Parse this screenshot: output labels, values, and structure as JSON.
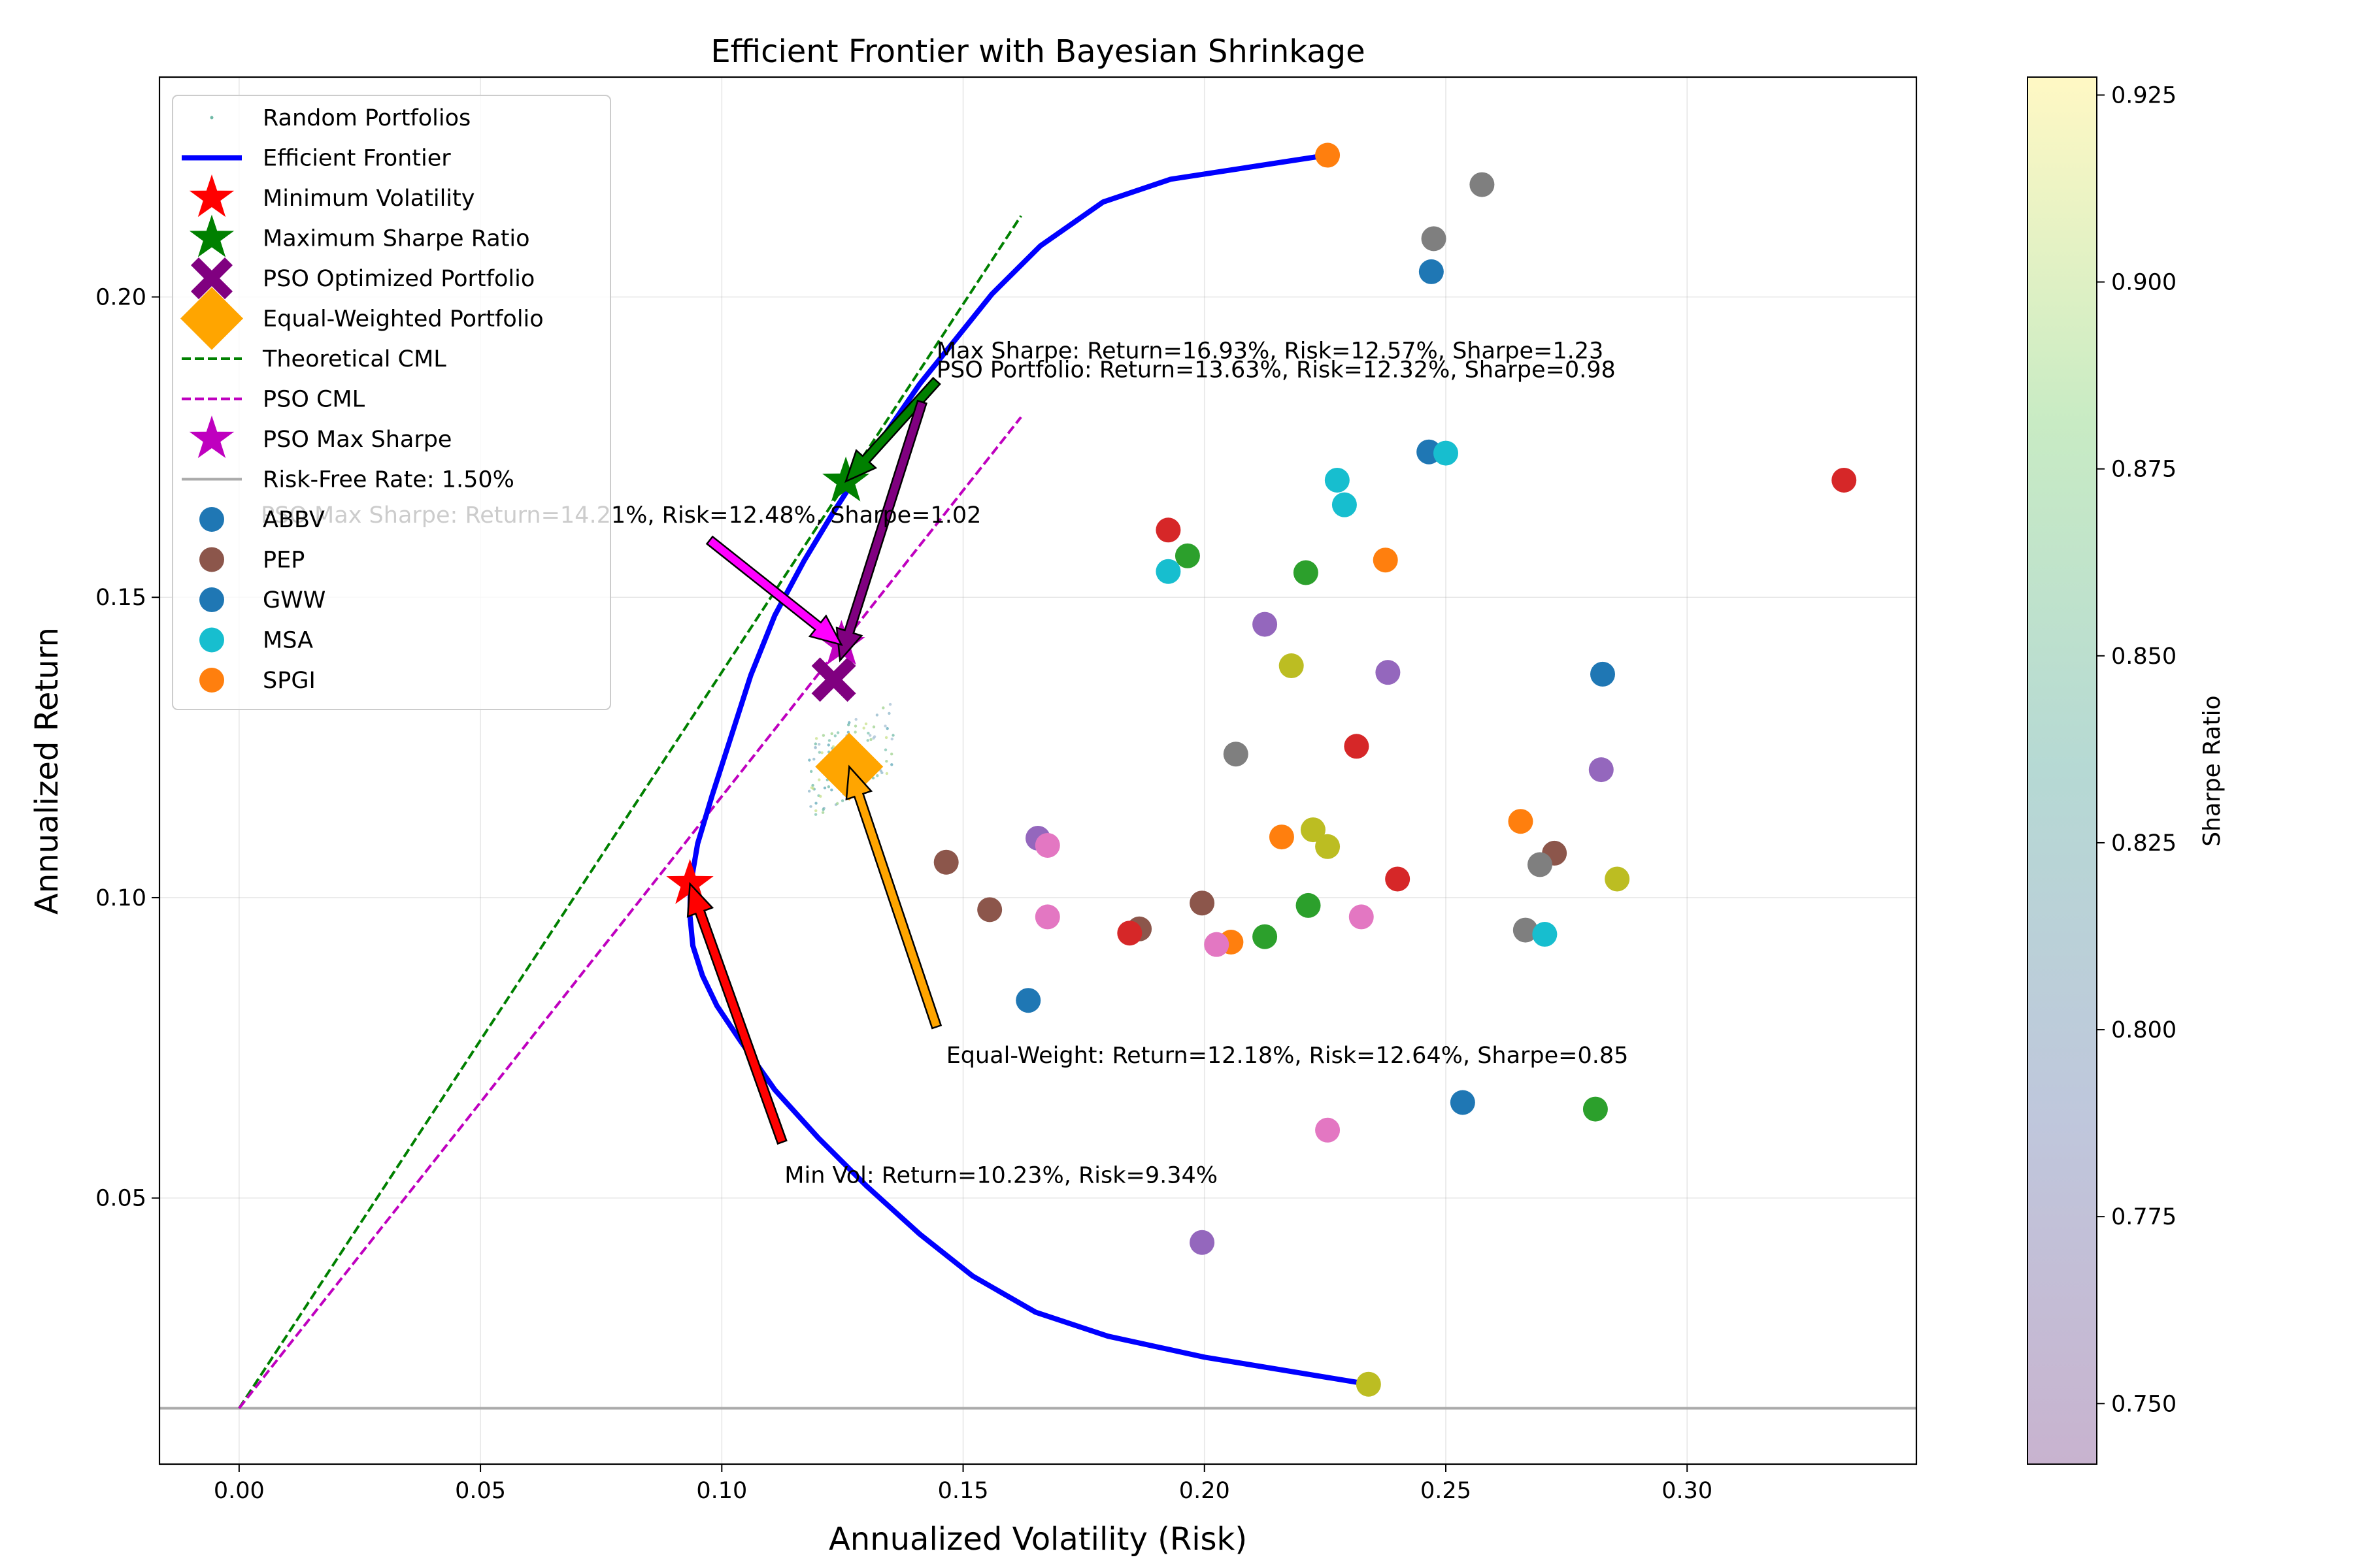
{
  "chart_data": {
    "type": "scatter",
    "title": "Efficient Frontier with Bayesian Shrinkage",
    "xlabel": "Annualized Volatility (Risk)",
    "ylabel": "Annualized Return",
    "xlim": [
      -0.0165,
      0.3475
    ],
    "ylim": [
      0.0057,
      0.2366
    ],
    "x_ticks": [
      0.0,
      0.05,
      0.1,
      0.15,
      0.2,
      0.25,
      0.3
    ],
    "x_tick_labels": [
      "0.00",
      "0.05",
      "0.10",
      "0.15",
      "0.20",
      "0.25",
      "0.30"
    ],
    "y_ticks": [
      0.05,
      0.1,
      0.15,
      0.2
    ],
    "y_tick_labels": [
      "0.05",
      "0.10",
      "0.15",
      "0.20"
    ],
    "grid": true,
    "legend_position": "upper-left",
    "legend": [
      {
        "label": "Random Portfolios",
        "marker": "dot",
        "color": "#6fb9a6"
      },
      {
        "label": "Efficient Frontier",
        "marker": "line",
        "color": "#0000ff"
      },
      {
        "label": "Minimum Volatility",
        "marker": "star",
        "color": "#ff0000"
      },
      {
        "label": "Maximum Sharpe Ratio",
        "marker": "star",
        "color": "#008000"
      },
      {
        "label": "PSO Optimized Portfolio",
        "marker": "x",
        "color": "#800080"
      },
      {
        "label": "Equal-Weighted Portfolio",
        "marker": "diamond",
        "color": "#ffa500"
      },
      {
        "label": "Theoretical CML",
        "marker": "dashed",
        "color": "#008000"
      },
      {
        "label": "PSO CML",
        "marker": "dashed",
        "color": "#bf00bf"
      },
      {
        "label": "PSO Max Sharpe",
        "marker": "star",
        "color": "#bf00bf"
      },
      {
        "label": "Risk-Free Rate: 1.50%",
        "marker": "line-thin",
        "color": "#aaaaaa"
      },
      {
        "label": "ABBV",
        "marker": "circle",
        "color": "#1f77b4"
      },
      {
        "label": "PEP",
        "marker": "circle",
        "color": "#8c564b"
      },
      {
        "label": "GWW",
        "marker": "circle",
        "color": "#1f77b4"
      },
      {
        "label": "MSA",
        "marker": "circle",
        "color": "#17becf"
      },
      {
        "label": "SPGI",
        "marker": "circle",
        "color": "#ff7f0e"
      }
    ],
    "risk_free_rate": 0.015,
    "efficient_frontier": {
      "x": [
        0.2255,
        0.193,
        0.179,
        0.166,
        0.156,
        0.148,
        0.141,
        0.135,
        0.129,
        0.123,
        0.117,
        0.111,
        0.106,
        0.102,
        0.098,
        0.095,
        0.0935,
        0.0934,
        0.094,
        0.096,
        0.099,
        0.104,
        0.111,
        0.12,
        0.13,
        0.141,
        0.152,
        0.165,
        0.18,
        0.2,
        0.234
      ],
      "y": [
        0.2236,
        0.2196,
        0.2158,
        0.2085,
        0.2005,
        0.1925,
        0.1855,
        0.1785,
        0.1715,
        0.164,
        0.156,
        0.147,
        0.137,
        0.127,
        0.117,
        0.109,
        0.102,
        0.097,
        0.092,
        0.087,
        0.082,
        0.076,
        0.068,
        0.06,
        0.052,
        0.044,
        0.037,
        0.031,
        0.027,
        0.0235,
        0.019
      ]
    },
    "theoretical_cml": {
      "x": [
        0.0,
        0.162
      ],
      "y": [
        0.015,
        0.2135
      ]
    },
    "pso_cml": {
      "x": [
        0.0,
        0.162
      ],
      "y": [
        0.015,
        0.18
      ]
    },
    "special_points": [
      {
        "name": "Minimum Volatility",
        "x": 0.0934,
        "y": 0.1023,
        "marker": "star",
        "color": "#ff0000"
      },
      {
        "name": "Maximum Sharpe Ratio",
        "x": 0.1257,
        "y": 0.1693,
        "marker": "star",
        "color": "#008000"
      },
      {
        "name": "PSO Optimized Portfolio",
        "x": 0.1232,
        "y": 0.1363,
        "marker": "x",
        "color": "#800080"
      },
      {
        "name": "Equal-Weighted Portfolio",
        "x": 0.1264,
        "y": 0.1218,
        "marker": "diamond",
        "color": "#ffa500"
      },
      {
        "name": "PSO Max Sharpe",
        "x": 0.1248,
        "y": 0.1421,
        "marker": "star",
        "color": "#bf00bf"
      }
    ],
    "random_portfolios": {
      "x_range": [
        0.118,
        0.136
      ],
      "y_range": [
        0.113,
        0.133
      ],
      "count": 120
    },
    "annotations": [
      {
        "text": "Max Sharpe: Return=16.93%, Risk=12.57%, Sharpe=1.23",
        "text_x": 0.1445,
        "text_y": 0.1898,
        "arrow_from": [
          0.1445,
          0.186
        ],
        "arrow_to": [
          0.1257,
          0.1693
        ],
        "color": "#008000"
      },
      {
        "text": "PSO Portfolio: Return=13.63%, Risk=12.32%, Sharpe=0.98",
        "text_x": 0.1445,
        "text_y": 0.1866,
        "arrow_from": [
          0.1415,
          0.1825
        ],
        "arrow_to": [
          0.1245,
          0.1395
        ],
        "color": "#800080"
      },
      {
        "text": "PSO Max Sharpe: Return=14.21%, Risk=12.48%, Sharpe=1.02",
        "text_x": 0.0045,
        "text_y": 0.1624,
        "arrow_from": [
          0.0975,
          0.1595
        ],
        "arrow_to": [
          0.1248,
          0.1421
        ],
        "color": "#ff00ff"
      },
      {
        "text": "Equal-Weight: Return=12.18%, Risk=12.64%, Sharpe=0.85",
        "text_x": 0.1465,
        "text_y": 0.0725,
        "arrow_from": [
          0.1445,
          0.0785
        ],
        "arrow_to": [
          0.1264,
          0.1218
        ],
        "color": "#ffa500"
      },
      {
        "text": "Min Vol: Return=10.23%, Risk=9.34%",
        "text_x": 0.113,
        "text_y": 0.0525,
        "arrow_from": [
          0.1125,
          0.0593
        ],
        "arrow_to": [
          0.0934,
          0.1023
        ],
        "color": "#ff0000"
      }
    ],
    "asset_points": [
      {
        "x": 0.2255,
        "y": 0.2236,
        "color": "#ff7f0e"
      },
      {
        "x": 0.2575,
        "y": 0.2187,
        "color": "#7f7f7f"
      },
      {
        "x": 0.2475,
        "y": 0.2097,
        "color": "#7f7f7f"
      },
      {
        "x": 0.247,
        "y": 0.2042,
        "color": "#1f77b4"
      },
      {
        "x": 0.3325,
        "y": 0.1695,
        "color": "#d62728"
      },
      {
        "x": 0.2465,
        "y": 0.1742,
        "color": "#1f77b4"
      },
      {
        "x": 0.25,
        "y": 0.174,
        "color": "#17becf"
      },
      {
        "x": 0.2275,
        "y": 0.1695,
        "color": "#17becf"
      },
      {
        "x": 0.229,
        "y": 0.1654,
        "color": "#17becf"
      },
      {
        "x": 0.1925,
        "y": 0.1612,
        "color": "#d62728"
      },
      {
        "x": 0.1965,
        "y": 0.1569,
        "color": "#2ca02c"
      },
      {
        "x": 0.2375,
        "y": 0.1562,
        "color": "#ff7f0e"
      },
      {
        "x": 0.1925,
        "y": 0.1543,
        "color": "#17becf"
      },
      {
        "x": 0.221,
        "y": 0.1541,
        "color": "#2ca02c"
      },
      {
        "x": 0.2125,
        "y": 0.1455,
        "color": "#9467bd"
      },
      {
        "x": 0.218,
        "y": 0.1386,
        "color": "#bcbd22"
      },
      {
        "x": 0.238,
        "y": 0.1375,
        "color": "#9467bd"
      },
      {
        "x": 0.2825,
        "y": 0.1372,
        "color": "#1f77b4"
      },
      {
        "x": 0.2315,
        "y": 0.1252,
        "color": "#d62728"
      },
      {
        "x": 0.2065,
        "y": 0.1239,
        "color": "#7f7f7f"
      },
      {
        "x": 0.2822,
        "y": 0.1213,
        "color": "#9467bd"
      },
      {
        "x": 0.2655,
        "y": 0.1127,
        "color": "#ff7f0e"
      },
      {
        "x": 0.2225,
        "y": 0.1113,
        "color": "#bcbd22"
      },
      {
        "x": 0.1655,
        "y": 0.1099,
        "color": "#9467bd"
      },
      {
        "x": 0.216,
        "y": 0.1101,
        "color": "#ff7f0e"
      },
      {
        "x": 0.1675,
        "y": 0.1087,
        "color": "#e377c2"
      },
      {
        "x": 0.2255,
        "y": 0.1085,
        "color": "#bcbd22"
      },
      {
        "x": 0.2725,
        "y": 0.1074,
        "color": "#8c564b"
      },
      {
        "x": 0.1465,
        "y": 0.1059,
        "color": "#8c564b"
      },
      {
        "x": 0.2695,
        "y": 0.1055,
        "color": "#7f7f7f"
      },
      {
        "x": 0.2855,
        "y": 0.1031,
        "color": "#bcbd22"
      },
      {
        "x": 0.24,
        "y": 0.1031,
        "color": "#d62728"
      },
      {
        "x": 0.1995,
        "y": 0.0991,
        "color": "#8c564b"
      },
      {
        "x": 0.2215,
        "y": 0.0987,
        "color": "#2ca02c"
      },
      {
        "x": 0.1555,
        "y": 0.098,
        "color": "#8c564b"
      },
      {
        "x": 0.1675,
        "y": 0.0968,
        "color": "#e377c2"
      },
      {
        "x": 0.2325,
        "y": 0.0968,
        "color": "#e377c2"
      },
      {
        "x": 0.1865,
        "y": 0.0948,
        "color": "#8c564b"
      },
      {
        "x": 0.2665,
        "y": 0.0946,
        "color": "#7f7f7f"
      },
      {
        "x": 0.1845,
        "y": 0.0941,
        "color": "#d62728"
      },
      {
        "x": 0.2705,
        "y": 0.0939,
        "color": "#17becf"
      },
      {
        "x": 0.2125,
        "y": 0.0935,
        "color": "#2ca02c"
      },
      {
        "x": 0.2055,
        "y": 0.0926,
        "color": "#ff7f0e"
      },
      {
        "x": 0.2025,
        "y": 0.0922,
        "color": "#e377c2"
      },
      {
        "x": 0.1635,
        "y": 0.0829,
        "color": "#1f77b4"
      },
      {
        "x": 0.2535,
        "y": 0.0659,
        "color": "#1f77b4"
      },
      {
        "x": 0.281,
        "y": 0.0648,
        "color": "#2ca02c"
      },
      {
        "x": 0.2255,
        "y": 0.0613,
        "color": "#e377c2"
      },
      {
        "x": 0.1995,
        "y": 0.0426,
        "color": "#9467bd"
      },
      {
        "x": 0.234,
        "y": 0.019,
        "color": "#bcbd22"
      }
    ],
    "colorbar": {
      "label": "Sharpe Ratio",
      "range": [
        0.7419,
        0.9274
      ],
      "ticks": [
        0.75,
        0.775,
        0.8,
        0.825,
        0.85,
        0.875,
        0.9,
        0.925
      ],
      "tick_labels": [
        "0.750",
        "0.775",
        "0.800",
        "0.825",
        "0.850",
        "0.875",
        "0.900",
        "0.925"
      ],
      "colormap": "viridis (alpha 0.3)"
    }
  }
}
